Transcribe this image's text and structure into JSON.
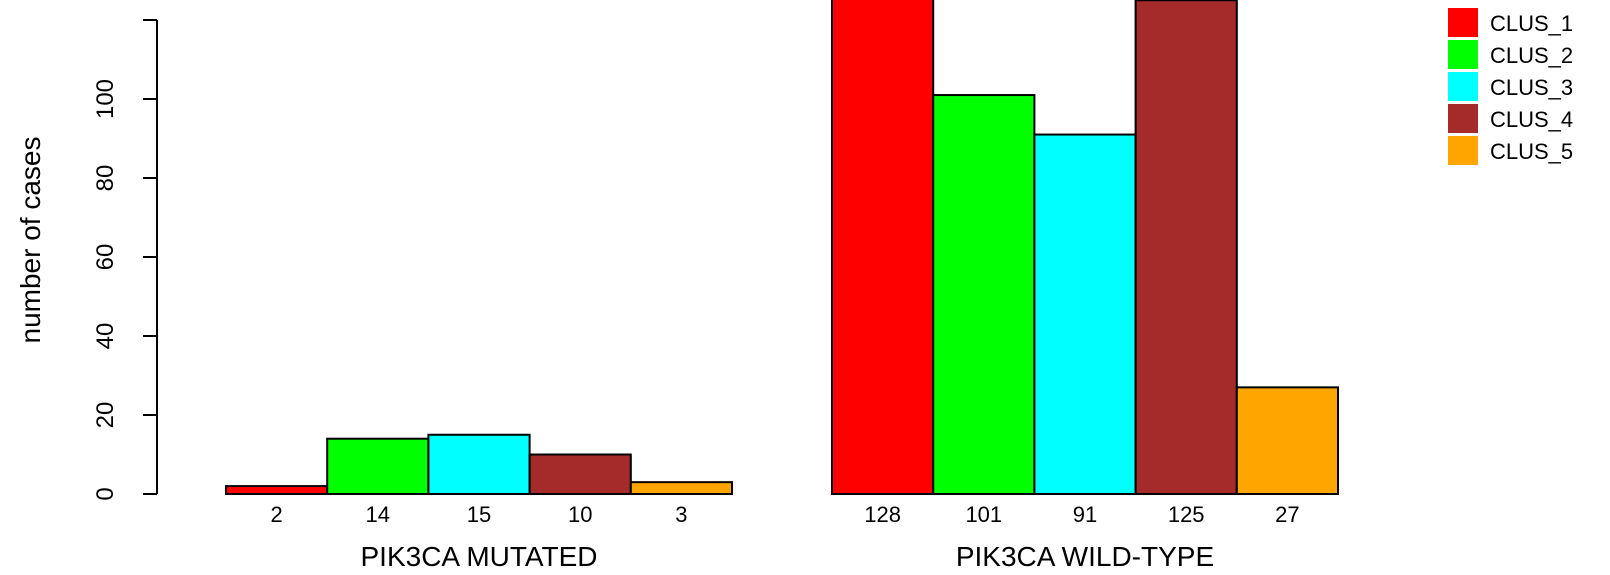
{
  "chart_data": {
    "type": "bar",
    "title": "",
    "xlabel": "",
    "ylabel": "number of cases",
    "ylim": [
      0,
      128
    ],
    "yticks": [
      0,
      20,
      40,
      60,
      80,
      100
    ],
    "grid": false,
    "legend_position": "top-right",
    "categories": [
      "PIK3CA MUTATED",
      "PIK3CA WILD-TYPE"
    ],
    "series": [
      {
        "name": "CLUS_1",
        "color": "#ff0000",
        "values": [
          2,
          128
        ],
        "labels": [
          "2",
          "128"
        ]
      },
      {
        "name": "CLUS_2",
        "color": "#00ff00",
        "values": [
          14,
          101
        ],
        "labels": [
          "14",
          "101"
        ]
      },
      {
        "name": "CLUS_3",
        "color": "#00ffff",
        "values": [
          15,
          91
        ],
        "labels": [
          "15",
          "91"
        ]
      },
      {
        "name": "CLUS_4",
        "color": "#a52a2a",
        "values": [
          10,
          125
        ],
        "labels": [
          "10",
          "125"
        ]
      },
      {
        "name": "CLUS_5",
        "color": "#ffa500",
        "values": [
          3,
          27
        ],
        "labels": [
          "3",
          "27"
        ]
      }
    ]
  }
}
